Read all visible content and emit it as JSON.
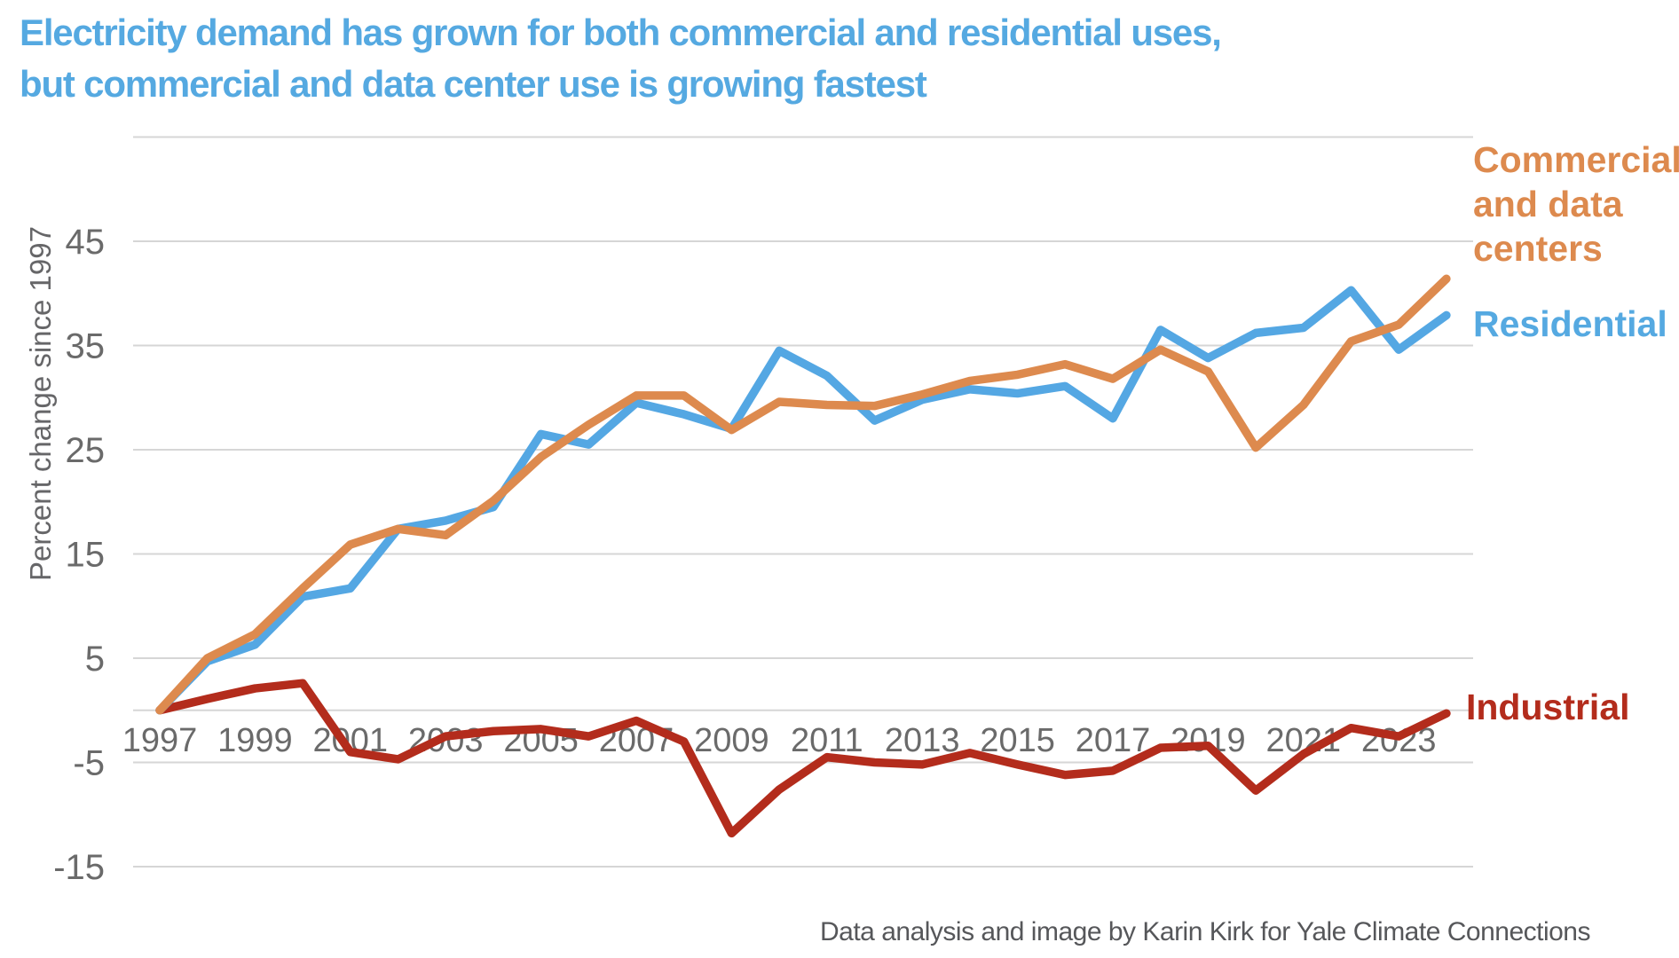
{
  "title": {
    "line1": "Electricity demand has grown for both commercial and residential uses,",
    "line2": "but commercial and data center use is growing fastest",
    "color": "#55a9e1"
  },
  "y_axis": {
    "title": "Percent change since 1997",
    "tick_labels": [
      "45",
      "35",
      "25",
      "15",
      "5",
      "-5",
      "-15"
    ],
    "tick_values": [
      45,
      35,
      25,
      15,
      5,
      -5,
      -15
    ],
    "gridline_values": [
      55,
      45,
      35,
      25,
      15,
      5,
      0,
      -5,
      -15
    ],
    "text_color": "#6a6a6a",
    "gridline_color": "#d6d6d6"
  },
  "x_axis": {
    "labels": [
      "1997",
      "1999",
      "2001",
      "2003",
      "2005",
      "2007",
      "2009",
      "2011",
      "2013",
      "2015",
      "2017",
      "2019",
      "2021",
      "2023"
    ],
    "label_values": [
      1997,
      1999,
      2001,
      2003,
      2005,
      2007,
      2009,
      2011,
      2013,
      2015,
      2017,
      2019,
      2021,
      2023
    ],
    "text_color": "#6a6a6a"
  },
  "legend": {
    "commercial": {
      "label": "Commercial and data centers",
      "color": "#dd8a4e"
    },
    "residential": {
      "label": "Residential",
      "color": "#55a9e1"
    },
    "industrial": {
      "label": "Industrial",
      "color": "#b32c1c"
    }
  },
  "caption": {
    "text": "Data analysis and image by Karin Kirk for Yale Climate Connections"
  },
  "chart_data": {
    "type": "line",
    "title": "Electricity demand has grown for both commercial and residential uses, but commercial and data center use is growing fastest",
    "xlabel": "",
    "ylabel": "Percent change since 1997",
    "x": [
      1997,
      1998,
      1999,
      2000,
      2001,
      2002,
      2003,
      2004,
      2005,
      2006,
      2007,
      2008,
      2009,
      2010,
      2011,
      2012,
      2013,
      2014,
      2015,
      2016,
      2017,
      2018,
      2019,
      2020,
      2021,
      2022,
      2023,
      2024
    ],
    "ylim": [
      -17,
      55
    ],
    "grid": true,
    "legend_position": "right",
    "series": [
      {
        "name": "Industrial",
        "color": "#b32c1c",
        "values": [
          0,
          1.1,
          2.1,
          2.6,
          -4.0,
          -4.7,
          -2.5,
          -2.0,
          -1.8,
          -2.5,
          -1.0,
          -3.0,
          -11.8,
          -7.6,
          -4.5,
          -5.0,
          -5.2,
          -4.1,
          -5.2,
          -6.2,
          -5.8,
          -3.6,
          -3.4,
          -7.7,
          -4.2,
          -1.7,
          -2.5,
          -0.3
        ]
      },
      {
        "name": "Residential",
        "color": "#54a7e3",
        "values": [
          0,
          4.7,
          6.3,
          10.9,
          11.7,
          17.4,
          18.2,
          19.5,
          26.5,
          25.5,
          29.5,
          28.4,
          27.0,
          34.5,
          32.1,
          27.8,
          29.8,
          30.8,
          30.4,
          31.1,
          28.0,
          36.5,
          33.8,
          36.2,
          36.7,
          40.3,
          34.6,
          37.9
        ]
      },
      {
        "name": "Commercial and data centers",
        "color": "#dd8a4e",
        "values": [
          0,
          5.0,
          7.3,
          11.7,
          15.9,
          17.4,
          16.8,
          20.1,
          24.3,
          27.4,
          30.2,
          30.2,
          26.9,
          29.6,
          29.3,
          29.2,
          30.3,
          31.6,
          32.2,
          33.2,
          31.8,
          34.6,
          32.5,
          25.2,
          29.3,
          35.4,
          37.0,
          41.4
        ]
      }
    ]
  }
}
